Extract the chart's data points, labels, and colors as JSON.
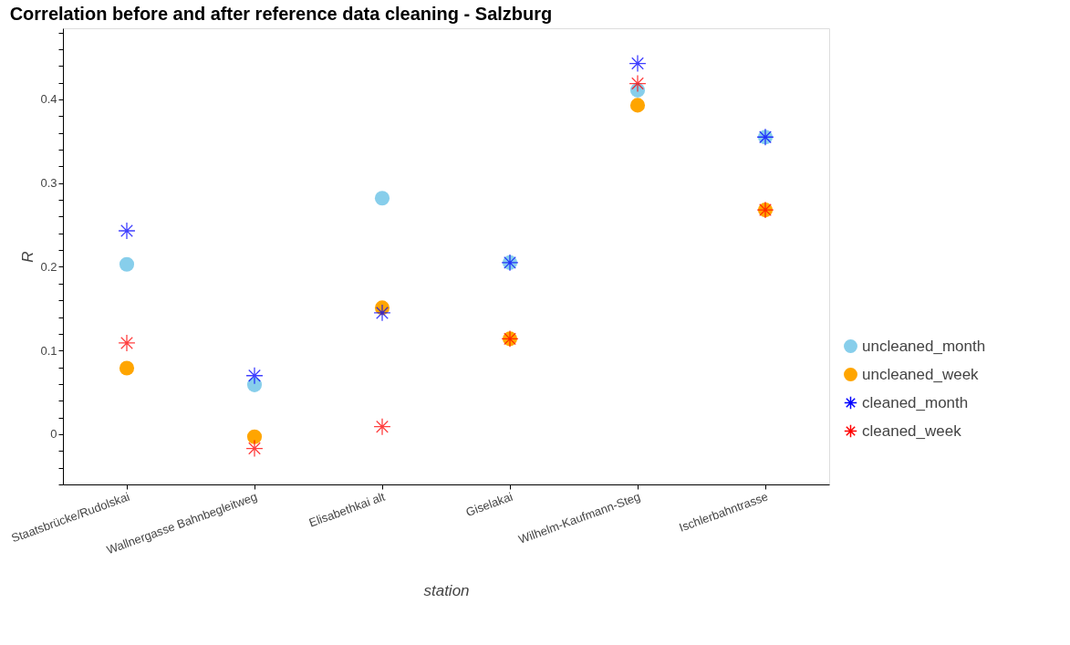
{
  "chart_data": {
    "type": "scatter",
    "title": "Correlation before and after reference data cleaning - Salzburg",
    "xlabel": "station",
    "ylabel": "R",
    "categories": [
      "Staatsbrücke/Rudolskai",
      "Wallnergasse Bahnbegleitweg",
      "Elisabethkai alt",
      "Giselakai",
      "Wilhelm-Kaufmann-Steg",
      "Ischlerbahntrasse"
    ],
    "series": [
      {
        "name": "uncleaned_month",
        "color": "#87ceeb",
        "marker": "circle",
        "values": [
          0.203,
          0.059,
          0.282,
          0.205,
          0.411,
          0.355
        ]
      },
      {
        "name": "uncleaned_week",
        "color": "#ffa500",
        "marker": "circle",
        "values": [
          0.079,
          -0.003,
          0.151,
          0.114,
          0.393,
          0.268
        ]
      },
      {
        "name": "cleaned_month",
        "color": "#0000ff",
        "marker": "cross",
        "values": [
          0.243,
          0.07,
          0.145,
          0.205,
          0.443,
          0.355
        ]
      },
      {
        "name": "cleaned_week",
        "color": "#ff0000",
        "marker": "cross",
        "values": [
          0.109,
          -0.017,
          0.009,
          0.114,
          0.419,
          0.268
        ]
      }
    ],
    "ylim": [
      -0.06,
      0.485
    ],
    "yticks": [
      {
        "value": -0.06,
        "label": null
      },
      {
        "value": -0.04,
        "label": null
      },
      {
        "value": -0.02,
        "label": null
      },
      0,
      {
        "value": 0.02,
        "label": null
      },
      {
        "value": 0.04,
        "label": null
      },
      {
        "value": 0.06,
        "label": null
      },
      {
        "value": 0.08,
        "label": null
      },
      0.1,
      {
        "value": 0.12,
        "label": null
      },
      {
        "value": 0.14,
        "label": null
      },
      {
        "value": 0.16,
        "label": null
      },
      {
        "value": 0.18,
        "label": null
      },
      0.2,
      {
        "value": 0.22,
        "label": null
      },
      {
        "value": 0.24,
        "label": null
      },
      {
        "value": 0.26,
        "label": null
      },
      {
        "value": 0.28,
        "label": null
      },
      0.3,
      {
        "value": 0.32,
        "label": null
      },
      {
        "value": 0.34,
        "label": null
      },
      {
        "value": 0.36,
        "label": null
      },
      {
        "value": 0.38,
        "label": null
      },
      0.4,
      {
        "value": 0.42,
        "label": null
      },
      {
        "value": 0.44,
        "label": null
      },
      {
        "value": 0.46,
        "label": null
      },
      {
        "value": 0.48,
        "label": null
      }
    ],
    "grid": false,
    "legend": "right"
  }
}
